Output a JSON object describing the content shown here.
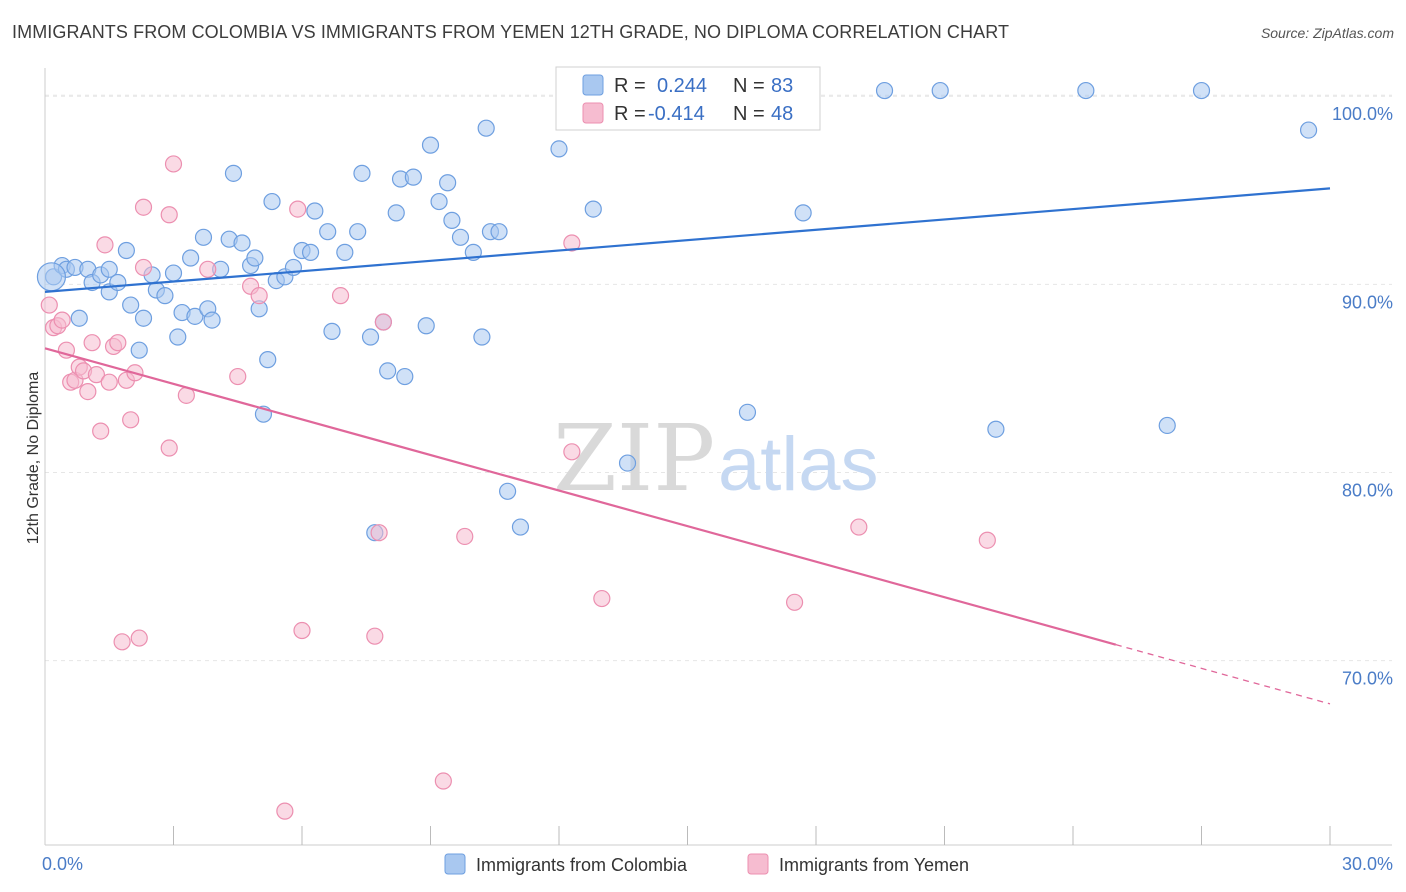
{
  "title": "IMMIGRANTS FROM COLOMBIA VS IMMIGRANTS FROM YEMEN 12TH GRADE, NO DIPLOMA CORRELATION CHART",
  "source": "Source: ZipAtlas.com",
  "watermark": {
    "zip": "ZIP",
    "atlas": "atlas"
  },
  "colors": {
    "blue_fill": "#a9c8f0",
    "blue_stroke": "#6e9fe0",
    "blue_line": "#2f72d0",
    "pink_fill": "#f6bcd0",
    "pink_stroke": "#ec8fb0",
    "pink_line": "#e0679a",
    "grid": "#e6e6e6",
    "axis_label": "#4a7cc7"
  },
  "legend_box": {
    "rows": [
      {
        "r_label": "R =",
        "r_value": "0.244",
        "n_label": "N =",
        "n_value": "83"
      },
      {
        "r_label": "R =",
        "r_value": "-0.414",
        "n_label": "N =",
        "n_value": "48"
      }
    ]
  },
  "chart_data": {
    "type": "scatter",
    "xlabel": "",
    "ylabel": "12th Grade, No Diploma",
    "xlim": [
      0,
      30
    ],
    "ylim": [
      60.2,
      101.5
    ],
    "x_tick_labels": [
      {
        "value": 0,
        "label": "0.0%"
      },
      {
        "value": 30,
        "label": "30.0%"
      }
    ],
    "x_minor_ticks": [
      3,
      6,
      9,
      12,
      15,
      18,
      21,
      24,
      27,
      30
    ],
    "y_ticks": [
      {
        "value": 70,
        "label": "70.0%"
      },
      {
        "value": 80,
        "label": "80.0%"
      },
      {
        "value": 90,
        "label": "90.0%"
      },
      {
        "value": 100,
        "label": "100.0%"
      }
    ],
    "grid": true,
    "legend_position": "bottom",
    "series": [
      {
        "name": "Immigrants from Colombia",
        "color": "#6e9fe0",
        "trend": {
          "x": [
            0,
            30
          ],
          "y": [
            89.6,
            95.1
          ],
          "dashed_from": null
        },
        "points": [
          [
            0.2,
            90.4
          ],
          [
            0.4,
            91.0
          ],
          [
            0.5,
            90.8
          ],
          [
            0.7,
            90.9
          ],
          [
            0.8,
            88.2
          ],
          [
            1.0,
            90.8
          ],
          [
            1.1,
            90.1
          ],
          [
            1.3,
            90.5
          ],
          [
            1.5,
            89.6
          ],
          [
            1.5,
            90.8
          ],
          [
            1.7,
            90.1
          ],
          [
            1.9,
            91.8
          ],
          [
            2.0,
            88.9
          ],
          [
            2.2,
            86.5
          ],
          [
            2.3,
            88.2
          ],
          [
            2.5,
            90.5
          ],
          [
            2.6,
            89.7
          ],
          [
            2.8,
            89.4
          ],
          [
            3.0,
            90.6
          ],
          [
            3.1,
            87.2
          ],
          [
            3.2,
            88.5
          ],
          [
            3.4,
            91.4
          ],
          [
            3.5,
            88.3
          ],
          [
            3.7,
            92.5
          ],
          [
            3.8,
            88.7
          ],
          [
            3.9,
            88.1
          ],
          [
            4.1,
            90.8
          ],
          [
            4.3,
            92.4
          ],
          [
            4.4,
            95.9
          ],
          [
            4.6,
            92.2
          ],
          [
            4.8,
            91.0
          ],
          [
            4.9,
            91.4
          ],
          [
            5.0,
            88.7
          ],
          [
            5.1,
            83.1
          ],
          [
            5.2,
            86.0
          ],
          [
            5.3,
            94.4
          ],
          [
            5.4,
            90.2
          ],
          [
            5.6,
            90.4
          ],
          [
            5.8,
            90.9
          ],
          [
            6.0,
            91.8
          ],
          [
            6.2,
            91.7
          ],
          [
            6.3,
            93.9
          ],
          [
            6.6,
            92.8
          ],
          [
            6.7,
            87.5
          ],
          [
            7.0,
            91.7
          ],
          [
            7.3,
            92.8
          ],
          [
            7.4,
            95.9
          ],
          [
            7.6,
            87.2
          ],
          [
            7.7,
            76.8
          ],
          [
            7.9,
            88.0
          ],
          [
            8.0,
            85.4
          ],
          [
            8.2,
            93.8
          ],
          [
            8.3,
            95.6
          ],
          [
            8.4,
            85.1
          ],
          [
            8.6,
            95.7
          ],
          [
            8.9,
            87.8
          ],
          [
            9.0,
            97.4
          ],
          [
            9.2,
            94.4
          ],
          [
            9.4,
            95.4
          ],
          [
            9.5,
            93.4
          ],
          [
            9.7,
            92.5
          ],
          [
            10.0,
            91.7
          ],
          [
            10.2,
            87.2
          ],
          [
            10.3,
            98.3
          ],
          [
            10.4,
            92.8
          ],
          [
            10.6,
            92.8
          ],
          [
            10.8,
            79.0
          ],
          [
            11.1,
            77.1
          ],
          [
            12.0,
            97.2
          ],
          [
            12.8,
            94.0
          ],
          [
            13.0,
            100.3
          ],
          [
            13.6,
            80.5
          ],
          [
            14.8,
            100.3
          ],
          [
            16.4,
            83.2
          ],
          [
            17.7,
            93.8
          ],
          [
            19.6,
            100.3
          ],
          [
            20.9,
            100.3
          ],
          [
            22.2,
            82.3
          ],
          [
            24.3,
            100.3
          ],
          [
            26.2,
            82.5
          ],
          [
            27.0,
            100.3
          ],
          [
            29.5,
            98.2
          ]
        ]
      },
      {
        "name": "Immigrants from Yemen",
        "color": "#ec8fb0",
        "trend": {
          "x": [
            0,
            30
          ],
          "y": [
            86.6,
            67.7
          ],
          "dashed_from": 25.0
        },
        "points": [
          [
            0.1,
            88.9
          ],
          [
            0.2,
            87.7
          ],
          [
            0.3,
            87.8
          ],
          [
            0.4,
            88.1
          ],
          [
            0.5,
            86.5
          ],
          [
            0.6,
            84.8
          ],
          [
            0.7,
            84.9
          ],
          [
            0.8,
            85.6
          ],
          [
            0.9,
            85.4
          ],
          [
            1.0,
            84.3
          ],
          [
            1.1,
            86.9
          ],
          [
            1.2,
            85.2
          ],
          [
            1.3,
            82.2
          ],
          [
            1.4,
            92.1
          ],
          [
            1.5,
            84.8
          ],
          [
            1.6,
            86.7
          ],
          [
            1.7,
            86.9
          ],
          [
            1.8,
            71.0
          ],
          [
            1.9,
            84.9
          ],
          [
            2.0,
            82.8
          ],
          [
            2.1,
            85.3
          ],
          [
            2.2,
            71.2
          ],
          [
            2.3,
            90.9
          ],
          [
            2.3,
            94.1
          ],
          [
            2.9,
            81.3
          ],
          [
            2.9,
            93.7
          ],
          [
            3.0,
            96.4
          ],
          [
            3.3,
            84.1
          ],
          [
            3.8,
            90.8
          ],
          [
            4.5,
            85.1
          ],
          [
            4.8,
            89.9
          ],
          [
            5.0,
            89.4
          ],
          [
            5.6,
            62.0
          ],
          [
            5.9,
            94.0
          ],
          [
            6.0,
            71.6
          ],
          [
            6.9,
            89.4
          ],
          [
            7.7,
            71.3
          ],
          [
            7.8,
            76.8
          ],
          [
            7.9,
            88.0
          ],
          [
            9.3,
            63.6
          ],
          [
            9.8,
            76.6
          ],
          [
            12.3,
            81.1
          ],
          [
            12.3,
            92.2
          ],
          [
            13.0,
            73.3
          ],
          [
            17.5,
            73.1
          ],
          [
            19.0,
            77.1
          ],
          [
            22.0,
            76.4
          ],
          [
            13.4,
            100.3
          ]
        ]
      }
    ]
  }
}
